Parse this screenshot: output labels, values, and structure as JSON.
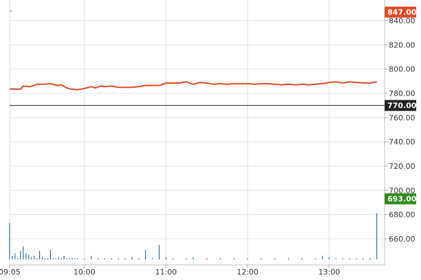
{
  "chart_data": {
    "type": "line",
    "title": "",
    "xlabel": "",
    "ylabel": "",
    "ylim": [
      640,
      850
    ],
    "grid": true,
    "x_ticks": [
      {
        "time": "09:05",
        "label": "09:05"
      },
      {
        "time": "10:00",
        "label": "10:00"
      },
      {
        "time": "11:00",
        "label": "11:00"
      },
      {
        "time": "12:00",
        "label": "12:00"
      },
      {
        "time": "13:00",
        "label": "13:00"
      }
    ],
    "y_ticks": [
      660,
      680,
      700,
      720,
      740,
      760,
      780,
      800,
      820,
      840
    ],
    "y_tick_labels": [
      "660.00",
      "680.00",
      "700.00",
      "720.00",
      "740.00",
      "760.00",
      "780.00",
      "800.00",
      "820.00",
      "840.00"
    ],
    "x_range": [
      "09:05",
      "13:35"
    ],
    "badges": [
      {
        "label": "847.00",
        "value": 847,
        "color": "#e04a25"
      },
      {
        "label": "770.00",
        "value": 770,
        "color": "#222222"
      },
      {
        "label": "693.00",
        "value": 693,
        "color": "#2e8b1e"
      }
    ],
    "reference_line": {
      "value": 770,
      "color": "#222222"
    },
    "series": [
      {
        "color": "#e04a25",
        "points": [
          [
            "09:05",
            783.5
          ],
          [
            "09:13",
            783.5
          ],
          [
            "09:15",
            786.0
          ],
          [
            "09:20",
            785.5
          ],
          [
            "09:25",
            787.5
          ],
          [
            "09:30",
            787.5
          ],
          [
            "09:35",
            788.0
          ],
          [
            "09:40",
            786.5
          ],
          [
            "09:43",
            787.0
          ],
          [
            "09:47",
            784.5
          ],
          [
            "09:50",
            783.5
          ],
          [
            "09:55",
            783.0
          ],
          [
            "10:00",
            784.0
          ],
          [
            "10:05",
            785.5
          ],
          [
            "10:08",
            784.5
          ],
          [
            "10:12",
            786.0
          ],
          [
            "10:15",
            785.5
          ],
          [
            "10:20",
            786.0
          ],
          [
            "10:25",
            785.0
          ],
          [
            "10:30",
            785.0
          ],
          [
            "10:35",
            785.0
          ],
          [
            "10:40",
            785.5
          ],
          [
            "10:45",
            786.5
          ],
          [
            "10:50",
            786.5
          ],
          [
            "10:55",
            786.5
          ],
          [
            "11:00",
            788.5
          ],
          [
            "11:05",
            788.5
          ],
          [
            "11:10",
            788.5
          ],
          [
            "11:15",
            789.5
          ],
          [
            "11:20",
            787.5
          ],
          [
            "11:25",
            789.0
          ],
          [
            "11:30",
            788.5
          ],
          [
            "11:35",
            787.5
          ],
          [
            "11:40",
            788.0
          ],
          [
            "11:45",
            787.5
          ],
          [
            "11:50",
            788.0
          ],
          [
            "11:55",
            788.0
          ],
          [
            "12:00",
            788.0
          ],
          [
            "12:05",
            787.5
          ],
          [
            "12:10",
            788.0
          ],
          [
            "12:15",
            788.0
          ],
          [
            "12:20",
            787.5
          ],
          [
            "12:25",
            787.0
          ],
          [
            "12:30",
            787.5
          ],
          [
            "12:35",
            787.0
          ],
          [
            "12:40",
            787.5
          ],
          [
            "12:45",
            787.0
          ],
          [
            "12:50",
            787.5
          ],
          [
            "12:55",
            788.0
          ],
          [
            "13:00",
            789.0
          ],
          [
            "13:05",
            789.5
          ],
          [
            "13:10",
            788.5
          ],
          [
            "13:15",
            789.5
          ],
          [
            "13:20",
            789.0
          ],
          [
            "13:25",
            788.5
          ],
          [
            "13:30",
            788.5
          ],
          [
            "13:35",
            789.5
          ]
        ]
      }
    ],
    "volume_bars": {
      "color": "#2b6d8f",
      "axis_base": 643,
      "axis_top_value": 847,
      "bars": [
        [
          "09:05",
          673
        ],
        [
          "09:07",
          646
        ],
        [
          "09:09",
          648
        ],
        [
          "09:11",
          644
        ],
        [
          "09:13",
          650
        ],
        [
          "09:15",
          654
        ],
        [
          "09:17",
          648
        ],
        [
          "09:19",
          647
        ],
        [
          "09:21",
          645
        ],
        [
          "09:23",
          646
        ],
        [
          "09:25",
          644
        ],
        [
          "09:27",
          650
        ],
        [
          "09:29",
          645
        ],
        [
          "09:31",
          644
        ],
        [
          "09:33",
          644
        ],
        [
          "09:35",
          651
        ],
        [
          "09:37",
          644
        ],
        [
          "09:39",
          644
        ],
        [
          "09:41",
          645
        ],
        [
          "09:43",
          644
        ],
        [
          "09:45",
          646
        ],
        [
          "09:47",
          644
        ],
        [
          "09:49",
          644
        ],
        [
          "09:51",
          644
        ],
        [
          "09:53",
          644
        ],
        [
          "09:55",
          644
        ],
        [
          "10:00",
          644
        ],
        [
          "10:05",
          646
        ],
        [
          "10:10",
          644
        ],
        [
          "10:15",
          644
        ],
        [
          "10:20",
          644
        ],
        [
          "10:25",
          644
        ],
        [
          "10:30",
          644
        ],
        [
          "10:35",
          645
        ],
        [
          "10:40",
          644
        ],
        [
          "10:45",
          651
        ],
        [
          "10:50",
          644
        ],
        [
          "10:55",
          655
        ],
        [
          "11:00",
          645
        ],
        [
          "11:05",
          644
        ],
        [
          "11:15",
          644
        ],
        [
          "11:20",
          645
        ],
        [
          "11:30",
          644
        ],
        [
          "11:40",
          644
        ],
        [
          "11:50",
          644
        ],
        [
          "12:00",
          644
        ],
        [
          "12:10",
          644
        ],
        [
          "12:20",
          644
        ],
        [
          "12:30",
          644
        ],
        [
          "12:40",
          644
        ],
        [
          "12:50",
          644
        ],
        [
          "12:55",
          646
        ],
        [
          "13:00",
          645
        ],
        [
          "13:05",
          644
        ],
        [
          "13:10",
          644
        ],
        [
          "13:15",
          644
        ],
        [
          "13:20",
          644
        ],
        [
          "13:25",
          644
        ],
        [
          "13:30",
          644
        ],
        [
          "13:35",
          681
        ]
      ]
    }
  }
}
